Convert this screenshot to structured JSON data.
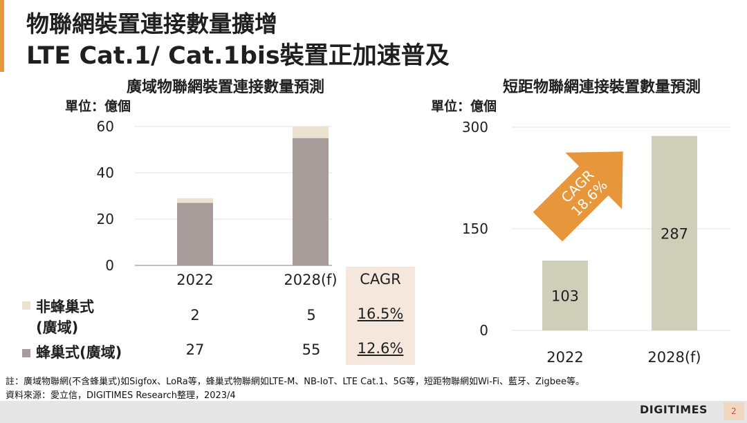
{
  "title_line1": "物聯網裝置連接數量擴增",
  "title_line2": "LTE Cat.1/ Cat.1bis裝置正加速普及",
  "chart_data": [
    {
      "type": "bar",
      "stacked": true,
      "title": "廣域物聯網裝置連接數量預測",
      "unit_label": "單位：億個",
      "categories": [
        "2022",
        "2028(f)"
      ],
      "series": [
        {
          "name": "蜂巢式(廣域)",
          "values": [
            27,
            55
          ],
          "color": "#a79c9a"
        },
        {
          "name": "非蜂巢式(廣域)",
          "values": [
            2,
            5
          ],
          "color": "#ece2d0"
        }
      ],
      "yticks": [
        "60",
        "40",
        "20",
        "0"
      ],
      "ylim": [
        0,
        60
      ],
      "table": {
        "cagr_header": "CAGR",
        "rows": [
          {
            "label_line1": "非蜂巢式",
            "label_line2": "(廣域)",
            "v2022": "2",
            "v2028": "5",
            "cagr": "16.5%"
          },
          {
            "label_line1": "蜂巢式(廣域)",
            "label_line2": "",
            "v2022": "27",
            "v2028": "55",
            "cagr": "12.6%"
          }
        ]
      }
    },
    {
      "type": "bar",
      "title": "短距物聯網連接裝置數量預測",
      "unit_label": "單位：億個",
      "categories": [
        "2022",
        "2028(f)"
      ],
      "values": [
        103,
        287
      ],
      "value_labels": [
        "103",
        "287"
      ],
      "color": "#cfcfb9",
      "yticks": [
        "300",
        "150",
        "0"
      ],
      "ylim": [
        0,
        300
      ],
      "arrow_text_line1": "CAGR",
      "arrow_text_line2": "18.6%",
      "arrow_color": "#e8963c"
    }
  ],
  "note": "註：廣域物聯網(不含蜂巢式)如Sigfox、LoRa等，蜂巢式物聯網如LTE-M、NB-IoT、LTE Cat.1、5G等，短距物聯網如Wi-Fi、藍牙、Zigbee等。",
  "source": "資料來源：愛立信，DIGITIMES Research整理，2023/4",
  "logo": "DIGITIMES",
  "page_number": "2"
}
